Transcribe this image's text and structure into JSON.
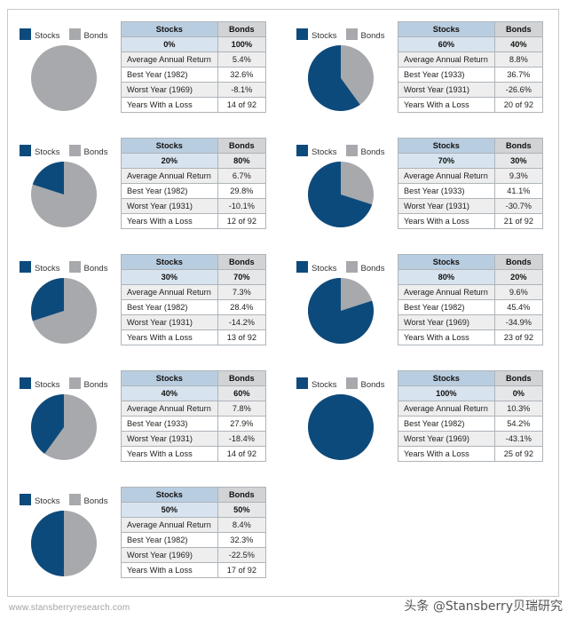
{
  "legend": {
    "stocks_label": "Stocks",
    "bonds_label": "Bonds"
  },
  "colors": {
    "stocks": "#0d4a7c",
    "bonds": "#a7a9ac"
  },
  "table_headers": {
    "stocks": "Stocks",
    "bonds": "Bonds"
  },
  "metric_labels": [
    "Average Annual Return",
    "Best Year",
    "Worst Year",
    "Years With a Loss"
  ],
  "panels": [
    {
      "stocks_pct": "0%",
      "bonds_pct": "100%",
      "avg_return": "5.4%",
      "best_year_label": "Best Year (1982)",
      "best_year": "32.6%",
      "worst_year_label": "Worst Year (1969)",
      "worst_year": "-8.1%",
      "loss_label": "Years With a Loss",
      "years_loss": "14 of 92"
    },
    {
      "stocks_pct": "20%",
      "bonds_pct": "80%",
      "avg_return": "6.7%",
      "best_year_label": "Best Year (1982)",
      "best_year": "29.8%",
      "worst_year_label": "Worst Year (1931)",
      "worst_year": "-10.1%",
      "loss_label": "Years With a Loss",
      "years_loss": "12 of 92"
    },
    {
      "stocks_pct": "30%",
      "bonds_pct": "70%",
      "avg_return": "7.3%",
      "best_year_label": "Best Year (1982)",
      "best_year": "28.4%",
      "worst_year_label": "Worst Year (1931)",
      "worst_year": "-14.2%",
      "loss_label": "Years With a Loss",
      "years_loss": "13 of 92"
    },
    {
      "stocks_pct": "40%",
      "bonds_pct": "60%",
      "avg_return": "7.8%",
      "best_year_label": "Best Year (1933)",
      "best_year": "27.9%",
      "worst_year_label": "Worst Year (1931)",
      "worst_year": "-18.4%",
      "loss_label": "Years With a Loss",
      "years_loss": "14 of 92"
    },
    {
      "stocks_pct": "50%",
      "bonds_pct": "50%",
      "avg_return": "8.4%",
      "best_year_label": "Best Year (1982)",
      "best_year": "32.3%",
      "worst_year_label": "Worst Year (1969)",
      "worst_year": "-22.5%",
      "loss_label": "Years With a Loss",
      "years_loss": "17 of 92"
    },
    {
      "stocks_pct": "60%",
      "bonds_pct": "40%",
      "avg_return": "8.8%",
      "best_year_label": "Best Year (1933)",
      "best_year": "36.7%",
      "worst_year_label": "Worst Year (1931)",
      "worst_year": "-26.6%",
      "loss_label": "Years With a Loss",
      "years_loss": "20 of 92"
    },
    {
      "stocks_pct": "70%",
      "bonds_pct": "30%",
      "avg_return": "9.3%",
      "best_year_label": "Best Year (1933)",
      "best_year": "41.1%",
      "worst_year_label": "Worst Year (1931)",
      "worst_year": "-30.7%",
      "loss_label": "Years With a Loss",
      "years_loss": "21 of 92"
    },
    {
      "stocks_pct": "80%",
      "bonds_pct": "20%",
      "avg_return": "9.6%",
      "best_year_label": "Best Year (1982)",
      "best_year": "45.4%",
      "worst_year_label": "Worst Year (1969)",
      "worst_year": "-34.9%",
      "loss_label": "Years With a Loss",
      "years_loss": "23 of 92"
    },
    {
      "stocks_pct": "100%",
      "bonds_pct": "0%",
      "avg_return": "10.3%",
      "best_year_label": "Best Year (1982)",
      "best_year": "54.2%",
      "worst_year_label": "Worst Year (1969)",
      "worst_year": "-43.1%",
      "loss_label": "Years With a Loss",
      "years_loss": "25 of 92"
    }
  ],
  "chart_data": [
    {
      "type": "pie",
      "categories": [
        "Stocks",
        "Bonds"
      ],
      "values": [
        0,
        100
      ]
    },
    {
      "type": "pie",
      "categories": [
        "Stocks",
        "Bonds"
      ],
      "values": [
        20,
        80
      ]
    },
    {
      "type": "pie",
      "categories": [
        "Stocks",
        "Bonds"
      ],
      "values": [
        30,
        70
      ]
    },
    {
      "type": "pie",
      "categories": [
        "Stocks",
        "Bonds"
      ],
      "values": [
        40,
        60
      ]
    },
    {
      "type": "pie",
      "categories": [
        "Stocks",
        "Bonds"
      ],
      "values": [
        50,
        50
      ]
    },
    {
      "type": "pie",
      "categories": [
        "Stocks",
        "Bonds"
      ],
      "values": [
        60,
        40
      ]
    },
    {
      "type": "pie",
      "categories": [
        "Stocks",
        "Bonds"
      ],
      "values": [
        70,
        30
      ]
    },
    {
      "type": "pie",
      "categories": [
        "Stocks",
        "Bonds"
      ],
      "values": [
        80,
        20
      ]
    },
    {
      "type": "pie",
      "categories": [
        "Stocks",
        "Bonds"
      ],
      "values": [
        100,
        0
      ]
    }
  ],
  "footer": {
    "url": "www.stansberryresearch.com",
    "watermark": "头条 @Stansberry贝瑞研究"
  }
}
